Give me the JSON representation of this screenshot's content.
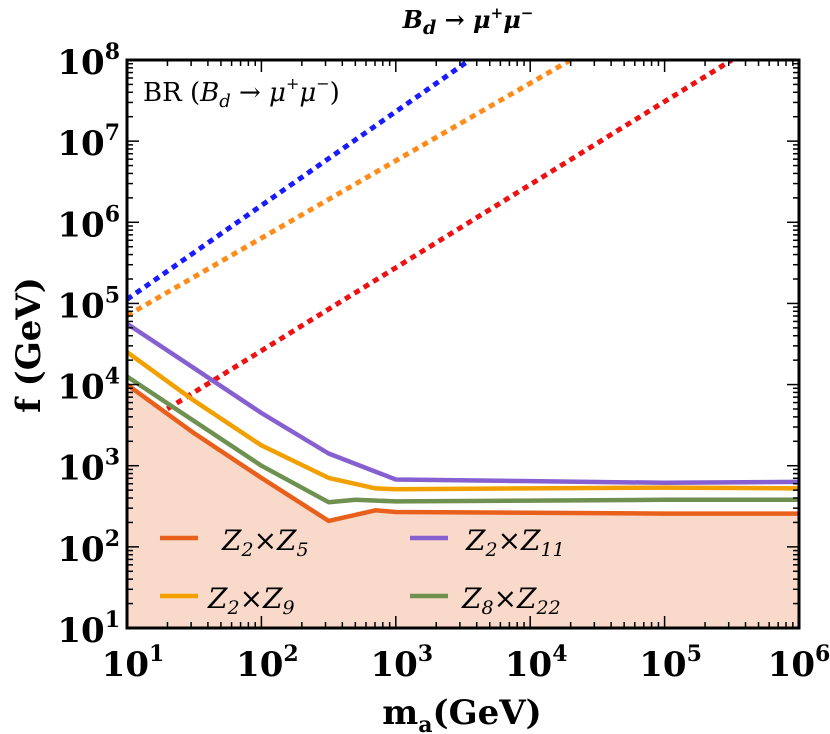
{
  "chart_data": {
    "type": "line",
    "title": {
      "main": "B",
      "sub": "d",
      "rest": " → μ",
      "sup1": "+",
      "rest2": "μ",
      "sup2": "−"
    },
    "inset_label": {
      "prefix": "BR (",
      "main": "B",
      "sub": "d",
      "rest": " → μ",
      "sup1": "+",
      "rest2": "μ",
      "sup2": "−",
      "suffix": ")"
    },
    "xlabel": {
      "main": "m",
      "sub": "a",
      "rest": "(GeV)"
    },
    "ylabel": "f (GeV)",
    "xscale": "log",
    "yscale": "log",
    "xlim_log10": [
      1,
      6
    ],
    "ylim_log10": [
      1,
      8
    ],
    "x_ticks": [
      {
        "base": "10",
        "exp": "1"
      },
      {
        "base": "10",
        "exp": "2"
      },
      {
        "base": "10",
        "exp": "3"
      },
      {
        "base": "10",
        "exp": "4"
      },
      {
        "base": "10",
        "exp": "5"
      },
      {
        "base": "10",
        "exp": "6"
      }
    ],
    "y_ticks": [
      {
        "base": "10",
        "exp": "1"
      },
      {
        "base": "10",
        "exp": "2"
      },
      {
        "base": "10",
        "exp": "3"
      },
      {
        "base": "10",
        "exp": "4"
      },
      {
        "base": "10",
        "exp": "5"
      },
      {
        "base": "10",
        "exp": "6"
      },
      {
        "base": "10",
        "exp": "7"
      },
      {
        "base": "10",
        "exp": "8"
      }
    ],
    "excluded_region": {
      "color": "#f9d9c9",
      "bound_series": "Z2xZ5"
    },
    "series": [
      {
        "id": "Z2xZ5",
        "legend": {
          "a": "Z",
          "a_sub": "2",
          "times": "×",
          "b": "Z",
          "b_sub": "5"
        },
        "color": "#e8601c",
        "points_log10": [
          [
            1,
            4.0
          ],
          [
            1.5,
            3.4
          ],
          [
            2,
            2.85
          ],
          [
            2.5,
            2.32
          ],
          [
            2.85,
            2.45
          ],
          [
            3,
            2.43
          ],
          [
            4,
            2.42
          ],
          [
            5,
            2.41
          ],
          [
            6,
            2.41
          ]
        ]
      },
      {
        "id": "Z2xZ9",
        "legend": {
          "a": "Z",
          "a_sub": "2",
          "times": "×",
          "b": "Z",
          "b_sub": "9"
        },
        "color": "#f2a000",
        "points_log10": [
          [
            1,
            4.4
          ],
          [
            1.5,
            3.8
          ],
          [
            2,
            3.25
          ],
          [
            2.5,
            2.85
          ],
          [
            2.85,
            2.72
          ],
          [
            3,
            2.71
          ],
          [
            4,
            2.72
          ],
          [
            5,
            2.73
          ],
          [
            6,
            2.72
          ]
        ]
      },
      {
        "id": "Z2xZ11",
        "legend": {
          "a": "Z",
          "a_sub": "2",
          "times": "×",
          "b": "Z",
          "b_sub": "11"
        },
        "color": "#8660d1",
        "points_log10": [
          [
            1,
            4.75
          ],
          [
            1.5,
            4.2
          ],
          [
            2,
            3.65
          ],
          [
            2.5,
            3.15
          ],
          [
            3,
            2.83
          ],
          [
            4,
            2.81
          ],
          [
            5,
            2.79
          ],
          [
            6,
            2.8
          ]
        ]
      },
      {
        "id": "Z8xZ22",
        "legend": {
          "a": "Z",
          "a_sub": "8",
          "times": "×",
          "b": "Z",
          "b_sub": "22"
        },
        "color": "#6e9150",
        "points_log10": [
          [
            1,
            4.1
          ],
          [
            1.5,
            3.55
          ],
          [
            2,
            3.0
          ],
          [
            2.5,
            2.55
          ],
          [
            2.7,
            2.58
          ],
          [
            3,
            2.56
          ],
          [
            4,
            2.57
          ],
          [
            5,
            2.58
          ],
          [
            6,
            2.58
          ]
        ]
      },
      {
        "id": "dot-blue",
        "legend": null,
        "color": "#1a1aff",
        "dotted": true,
        "points_log10": [
          [
            1,
            5.05
          ],
          [
            3.55,
            8.0
          ]
        ]
      },
      {
        "id": "dot-orange",
        "legend": null,
        "color": "#ff8c1a",
        "dotted": true,
        "points_log10": [
          [
            1,
            4.85
          ],
          [
            4.3,
            8.0
          ]
        ]
      },
      {
        "id": "dot-red",
        "legend": null,
        "color": "#ee1111",
        "dotted": true,
        "points_log10": [
          [
            1.3,
            3.7
          ],
          [
            5.5,
            8.0
          ]
        ]
      }
    ]
  }
}
